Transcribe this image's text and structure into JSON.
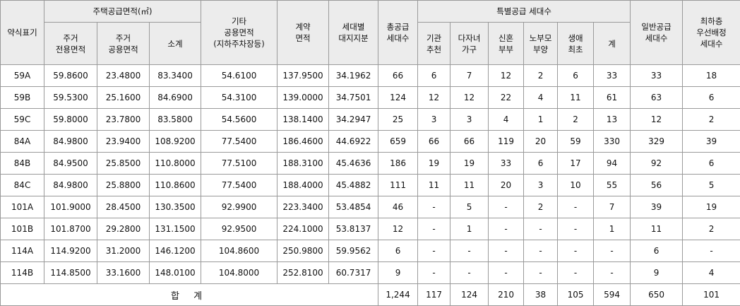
{
  "headers": {
    "type": "약식표기",
    "housing_area": "주택공급면적(㎡)",
    "excl_area": [
      "주거",
      "전용면적"
    ],
    "common_area": [
      "주거",
      "공용면적"
    ],
    "subtotal": "소계",
    "other_common": [
      "기타",
      "공용면적",
      "(지하주차장등)"
    ],
    "contract_area": [
      "계약",
      "면적"
    ],
    "land_share": [
      "세대별",
      "대지지분"
    ],
    "total_supply": [
      "총공급",
      "세대수"
    ],
    "special_supply": "특별공급 세대수",
    "institution": [
      "기관",
      "추천"
    ],
    "multichild": [
      "다자녀",
      "가구"
    ],
    "newlywed": [
      "신혼",
      "부부"
    ],
    "elderly": [
      "노부모",
      "부양"
    ],
    "first_life": [
      "생애",
      "최초"
    ],
    "special_total": "계",
    "general": [
      "일반공급",
      "세대수"
    ],
    "lowest_floor": [
      "최하층",
      "우선배정",
      "세대수"
    ]
  },
  "rows": [
    {
      "type": "59A",
      "excl": "59.8600",
      "common": "23.4800",
      "subtotal": "83.3400",
      "other": "54.6100",
      "contract": "137.9500",
      "land": "34.1962",
      "total": "66",
      "inst": "6",
      "multi": "7",
      "newly": "12",
      "elder": "2",
      "first": "6",
      "sp_total": "33",
      "general": "33",
      "lowest": "18"
    },
    {
      "type": "59B",
      "excl": "59.5300",
      "common": "25.1600",
      "subtotal": "84.6900",
      "other": "54.3100",
      "contract": "139.0000",
      "land": "34.7501",
      "total": "124",
      "inst": "12",
      "multi": "12",
      "newly": "22",
      "elder": "4",
      "first": "11",
      "sp_total": "61",
      "general": "63",
      "lowest": "6"
    },
    {
      "type": "59C",
      "excl": "59.8000",
      "common": "23.7800",
      "subtotal": "83.5800",
      "other": "54.5600",
      "contract": "138.1400",
      "land": "34.2947",
      "total": "25",
      "inst": "3",
      "multi": "3",
      "newly": "4",
      "elder": "1",
      "first": "2",
      "sp_total": "13",
      "general": "12",
      "lowest": "2"
    },
    {
      "type": "84A",
      "excl": "84.9800",
      "common": "23.9400",
      "subtotal": "108.9200",
      "other": "77.5400",
      "contract": "186.4600",
      "land": "44.6922",
      "total": "659",
      "inst": "66",
      "multi": "66",
      "newly": "119",
      "elder": "20",
      "first": "59",
      "sp_total": "330",
      "general": "329",
      "lowest": "39"
    },
    {
      "type": "84B",
      "excl": "84.9500",
      "common": "25.8500",
      "subtotal": "110.8000",
      "other": "77.5100",
      "contract": "188.3100",
      "land": "45.4636",
      "total": "186",
      "inst": "19",
      "multi": "19",
      "newly": "33",
      "elder": "6",
      "first": "17",
      "sp_total": "94",
      "general": "92",
      "lowest": "6"
    },
    {
      "type": "84C",
      "excl": "84.9800",
      "common": "25.8800",
      "subtotal": "110.8600",
      "other": "77.5400",
      "contract": "188.4000",
      "land": "45.4882",
      "total": "111",
      "inst": "11",
      "multi": "11",
      "newly": "20",
      "elder": "3",
      "first": "10",
      "sp_total": "55",
      "general": "56",
      "lowest": "5"
    },
    {
      "type": "101A",
      "excl": "101.9000",
      "common": "28.4500",
      "subtotal": "130.3500",
      "other": "92.9900",
      "contract": "223.3400",
      "land": "53.4854",
      "total": "46",
      "inst": "-",
      "multi": "5",
      "newly": "-",
      "elder": "2",
      "first": "-",
      "sp_total": "7",
      "general": "39",
      "lowest": "19"
    },
    {
      "type": "101B",
      "excl": "101.8700",
      "common": "29.2800",
      "subtotal": "131.1500",
      "other": "92.9500",
      "contract": "224.1000",
      "land": "53.8137",
      "total": "12",
      "inst": "-",
      "multi": "1",
      "newly": "-",
      "elder": "-",
      "first": "-",
      "sp_total": "1",
      "general": "11",
      "lowest": "2"
    },
    {
      "type": "114A",
      "excl": "114.9200",
      "common": "31.2000",
      "subtotal": "146.1200",
      "other": "104.8600",
      "contract": "250.9800",
      "land": "59.9562",
      "total": "6",
      "inst": "-",
      "multi": "-",
      "newly": "-",
      "elder": "-",
      "first": "-",
      "sp_total": "-",
      "general": "6",
      "lowest": "-"
    },
    {
      "type": "114B",
      "excl": "114.8500",
      "common": "33.1600",
      "subtotal": "148.0100",
      "other": "104.8000",
      "contract": "252.8100",
      "land": "60.7317",
      "total": "9",
      "inst": "-",
      "multi": "-",
      "newly": "-",
      "elder": "-",
      "first": "-",
      "sp_total": "-",
      "general": "9",
      "lowest": "4"
    }
  ],
  "totals": {
    "label": "합 계",
    "total": "1,244",
    "inst": "117",
    "multi": "124",
    "newly": "210",
    "elder": "38",
    "first": "105",
    "sp_total": "594",
    "general": "650",
    "lowest": "101"
  }
}
